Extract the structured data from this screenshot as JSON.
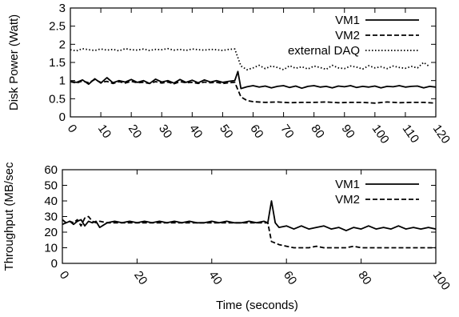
{
  "chart_data": [
    {
      "type": "line",
      "title": "",
      "xlabel": "",
      "ylabel": "Disk Power (Watt)",
      "xlim": [
        0,
        120
      ],
      "ylim": [
        0,
        3
      ],
      "xticks": [
        "0",
        "10",
        "20",
        "30",
        "40",
        "50",
        "60",
        "70",
        "80",
        "90",
        "100",
        "110",
        "120"
      ],
      "yticks": [
        "0",
        "0.5",
        "1",
        "1.5",
        "2",
        "2.5",
        "3"
      ],
      "grid": false,
      "legend": "top-right",
      "series": [
        {
          "name": "VM1",
          "style": "solid",
          "x": [
            0,
            2,
            4,
            6,
            8,
            10,
            12,
            14,
            16,
            18,
            20,
            22,
            24,
            26,
            28,
            30,
            32,
            34,
            36,
            38,
            40,
            42,
            44,
            46,
            48,
            50,
            52,
            54,
            55,
            56,
            58,
            60,
            62,
            64,
            66,
            68,
            70,
            72,
            74,
            76,
            78,
            80,
            82,
            84,
            86,
            88,
            90,
            92,
            94,
            96,
            98,
            100,
            102,
            104,
            106,
            108,
            110,
            112,
            114,
            116,
            118,
            120
          ],
          "values": [
            0.98,
            0.95,
            1.02,
            0.9,
            1.05,
            0.93,
            1.08,
            0.94,
            1.0,
            0.96,
            1.03,
            0.95,
            1.0,
            0.92,
            1.04,
            0.96,
            1.0,
            0.93,
            1.03,
            0.95,
            1.01,
            0.94,
            1.02,
            0.96,
            1.0,
            0.95,
            0.98,
            1.0,
            1.25,
            0.78,
            0.83,
            0.86,
            0.82,
            0.85,
            0.8,
            0.84,
            0.86,
            0.81,
            0.85,
            0.79,
            0.84,
            0.86,
            0.82,
            0.84,
            0.8,
            0.85,
            0.83,
            0.86,
            0.81,
            0.84,
            0.82,
            0.85,
            0.8,
            0.84,
            0.83,
            0.86,
            0.82,
            0.84,
            0.85,
            0.8,
            0.84,
            0.82
          ]
        },
        {
          "name": "VM2",
          "style": "dashed",
          "x": [
            0,
            2,
            4,
            6,
            8,
            10,
            12,
            14,
            16,
            18,
            20,
            22,
            24,
            26,
            28,
            30,
            32,
            34,
            36,
            38,
            40,
            42,
            44,
            46,
            48,
            50,
            52,
            54,
            56,
            58,
            60,
            64,
            68,
            72,
            76,
            80,
            84,
            88,
            92,
            96,
            100,
            104,
            108,
            112,
            116,
            120
          ],
          "values": [
            0.97,
            0.93,
            0.99,
            0.94,
            1.03,
            0.95,
            0.98,
            0.92,
            0.97,
            0.93,
            0.98,
            0.94,
            0.95,
            0.92,
            0.97,
            0.93,
            0.96,
            0.91,
            0.97,
            0.94,
            0.95,
            0.92,
            0.96,
            0.94,
            0.95,
            0.92,
            0.94,
            0.95,
            0.55,
            0.45,
            0.42,
            0.4,
            0.41,
            0.39,
            0.4,
            0.4,
            0.41,
            0.39,
            0.4,
            0.4,
            0.38,
            0.41,
            0.39,
            0.4,
            0.4,
            0.38
          ]
        },
        {
          "name": "external DAQ",
          "style": "dotted",
          "x": [
            0,
            2,
            4,
            6,
            8,
            10,
            12,
            14,
            16,
            18,
            20,
            22,
            24,
            26,
            28,
            30,
            32,
            34,
            36,
            38,
            40,
            42,
            44,
            46,
            48,
            50,
            52,
            54,
            56,
            58,
            60,
            62,
            64,
            66,
            68,
            70,
            72,
            74,
            76,
            78,
            80,
            82,
            84,
            86,
            88,
            90,
            92,
            94,
            96,
            98,
            100,
            102,
            104,
            106,
            108,
            110,
            112,
            114,
            116,
            118
          ],
          "values": [
            1.85,
            1.82,
            1.88,
            1.85,
            1.83,
            1.87,
            1.84,
            1.86,
            1.82,
            1.88,
            1.85,
            1.84,
            1.87,
            1.83,
            1.86,
            1.85,
            1.88,
            1.84,
            1.86,
            1.83,
            1.87,
            1.85,
            1.84,
            1.86,
            1.85,
            1.83,
            1.86,
            1.87,
            1.4,
            1.3,
            1.35,
            1.42,
            1.33,
            1.4,
            1.36,
            1.3,
            1.41,
            1.34,
            1.38,
            1.32,
            1.4,
            1.36,
            1.31,
            1.42,
            1.35,
            1.33,
            1.4,
            1.37,
            1.32,
            1.41,
            1.35,
            1.38,
            1.33,
            1.4,
            1.36,
            1.34,
            1.39,
            1.35,
            1.5,
            1.38
          ]
        }
      ]
    },
    {
      "type": "line",
      "title": "",
      "xlabel": "Time (seconds)",
      "ylabel": "Throughput (MB/sec",
      "xlim": [
        0,
        100
      ],
      "ylim": [
        0,
        60
      ],
      "xticks": [
        "0",
        "20",
        "40",
        "60",
        "80",
        "100"
      ],
      "yticks": [
        "0",
        "10",
        "20",
        "30",
        "40",
        "50",
        "60"
      ],
      "grid": false,
      "legend": "top-right",
      "series": [
        {
          "name": "VM1",
          "style": "solid",
          "x": [
            0,
            1,
            2,
            3,
            4,
            5,
            6,
            7,
            8,
            9,
            10,
            12,
            14,
            16,
            18,
            20,
            22,
            24,
            26,
            28,
            30,
            32,
            34,
            36,
            38,
            40,
            42,
            44,
            46,
            48,
            50,
            52,
            54,
            55,
            56,
            57,
            58,
            60,
            62,
            64,
            66,
            68,
            70,
            72,
            74,
            76,
            78,
            80,
            82,
            84,
            86,
            88,
            90,
            92,
            94,
            96,
            98,
            100
          ],
          "values": [
            28,
            26,
            27,
            25,
            27,
            28,
            24,
            27,
            26,
            27,
            23,
            26,
            27,
            26,
            27,
            26,
            27,
            26,
            27,
            26,
            27,
            26,
            27,
            26,
            26,
            27,
            26,
            27,
            26,
            26,
            27,
            26,
            27,
            26,
            40,
            26,
            23,
            24,
            22,
            24,
            22,
            23,
            24,
            22,
            23,
            21,
            23,
            22,
            24,
            22,
            23,
            22,
            24,
            22,
            23,
            22,
            23,
            22
          ]
        },
        {
          "name": "VM2",
          "style": "dashed",
          "x": [
            0,
            1,
            2,
            3,
            4,
            5,
            6,
            7,
            8,
            9,
            10,
            12,
            14,
            16,
            18,
            20,
            22,
            24,
            26,
            28,
            30,
            32,
            34,
            36,
            38,
            40,
            42,
            44,
            46,
            48,
            50,
            52,
            54,
            55,
            56,
            57,
            58,
            60,
            62,
            64,
            66,
            68,
            70,
            72,
            74,
            76,
            78,
            80,
            82,
            84,
            86,
            88,
            90,
            92,
            94,
            96,
            98,
            100
          ],
          "values": [
            25,
            26,
            27,
            26,
            28,
            24,
            29,
            30,
            27,
            26,
            27,
            26,
            26,
            26,
            26,
            26,
            26,
            26,
            26,
            26,
            26,
            26,
            26,
            26,
            26,
            26,
            26,
            26,
            26,
            26,
            26,
            26,
            26,
            26,
            14,
            13,
            12,
            11,
            10,
            10,
            10,
            11,
            10,
            10,
            10,
            10,
            11,
            10,
            10,
            10,
            10,
            10,
            10,
            10,
            10,
            10,
            10,
            10
          ]
        }
      ]
    }
  ]
}
